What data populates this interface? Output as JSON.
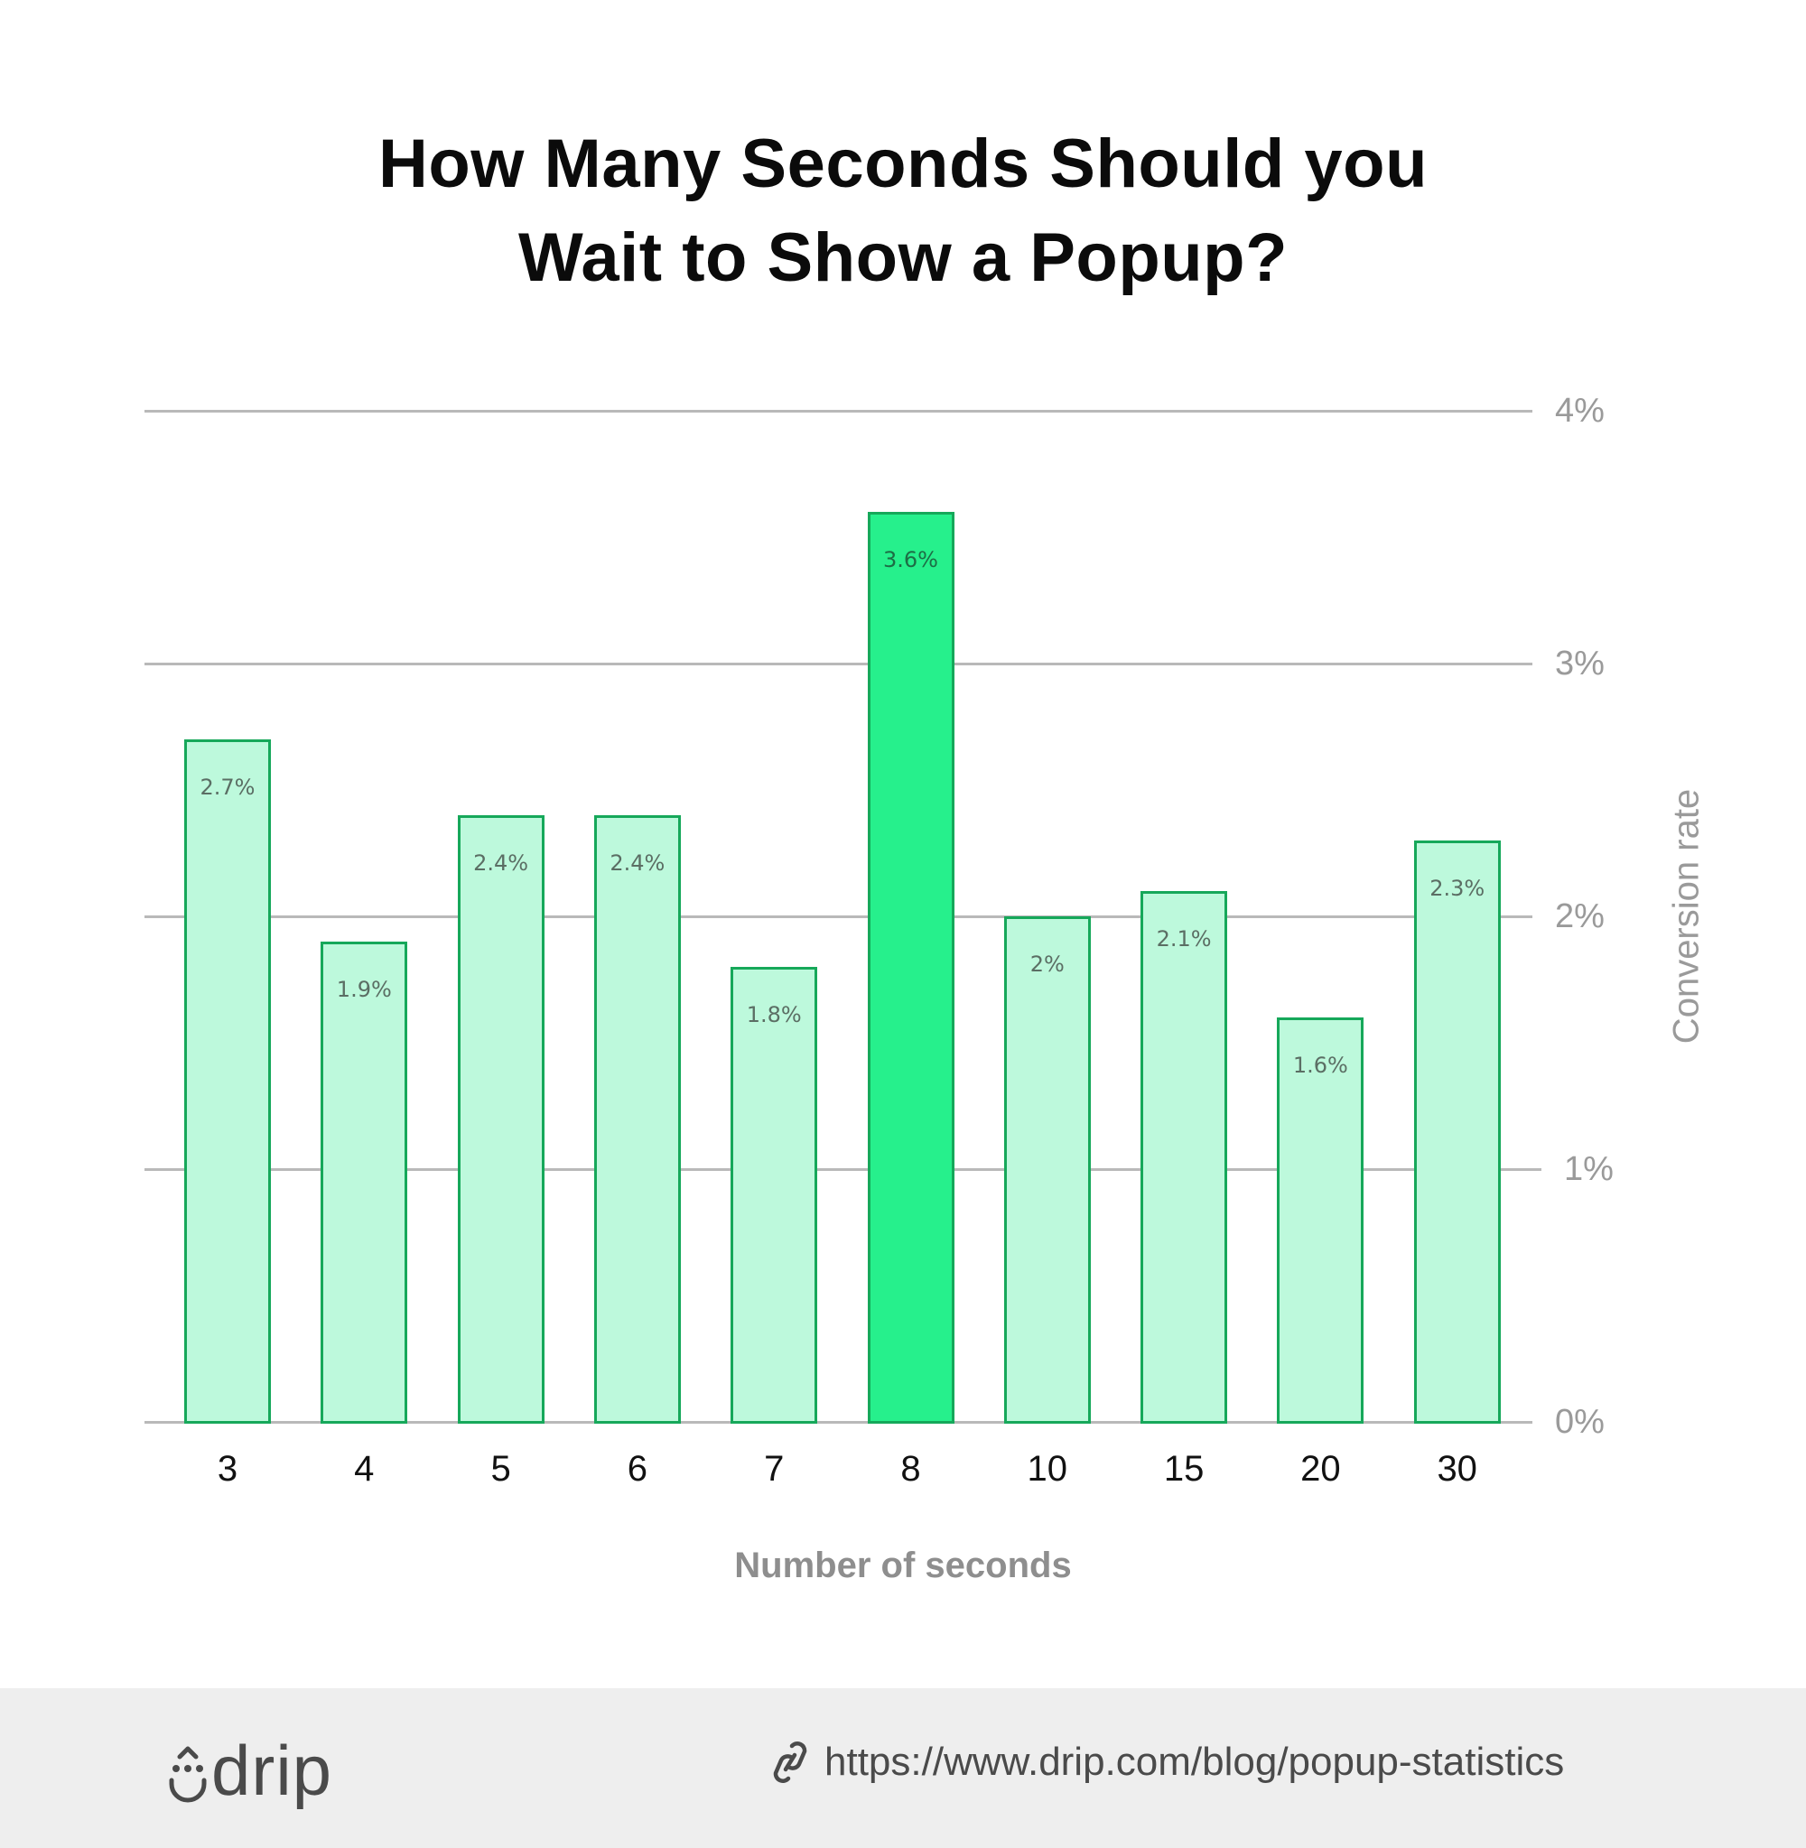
{
  "title_line1": "How Many Seconds Should you",
  "title_line2": "Wait to Show a Popup?",
  "colors": {
    "bar_fill": "#bdf9dc",
    "bar_highlight_fill": "#26f08c",
    "bar_border": "#16a85a",
    "gridline": "#b9b9b9",
    "axis_text": "#9a9a9a",
    "footer_bg": "#eeeeee"
  },
  "chart_data": {
    "type": "bar",
    "title": "How Many Seconds Should you Wait to Show a Popup?",
    "xlabel": "Number of seconds",
    "ylabel": "Conversion rate",
    "categories": [
      "3",
      "4",
      "5",
      "6",
      "7",
      "8",
      "10",
      "15",
      "20",
      "30"
    ],
    "values": [
      2.7,
      1.9,
      2.4,
      2.4,
      1.8,
      3.6,
      2.0,
      2.1,
      1.6,
      2.3
    ],
    "value_labels": [
      "2.7%",
      "1.9%",
      "2.4%",
      "2.4%",
      "1.8%",
      "3.6%",
      "2%",
      "2.1%",
      "1.6%",
      "2.3%"
    ],
    "highlighted_category": "8",
    "ylim": [
      0,
      4
    ],
    "yticks": [
      "0%",
      "1%",
      "2%",
      "3%",
      "4%"
    ],
    "y_axis_position": "right",
    "grid": true,
    "legend": null
  },
  "footer": {
    "brand": "drip",
    "url": "https://www.drip.com/blog/popup-statistics"
  }
}
